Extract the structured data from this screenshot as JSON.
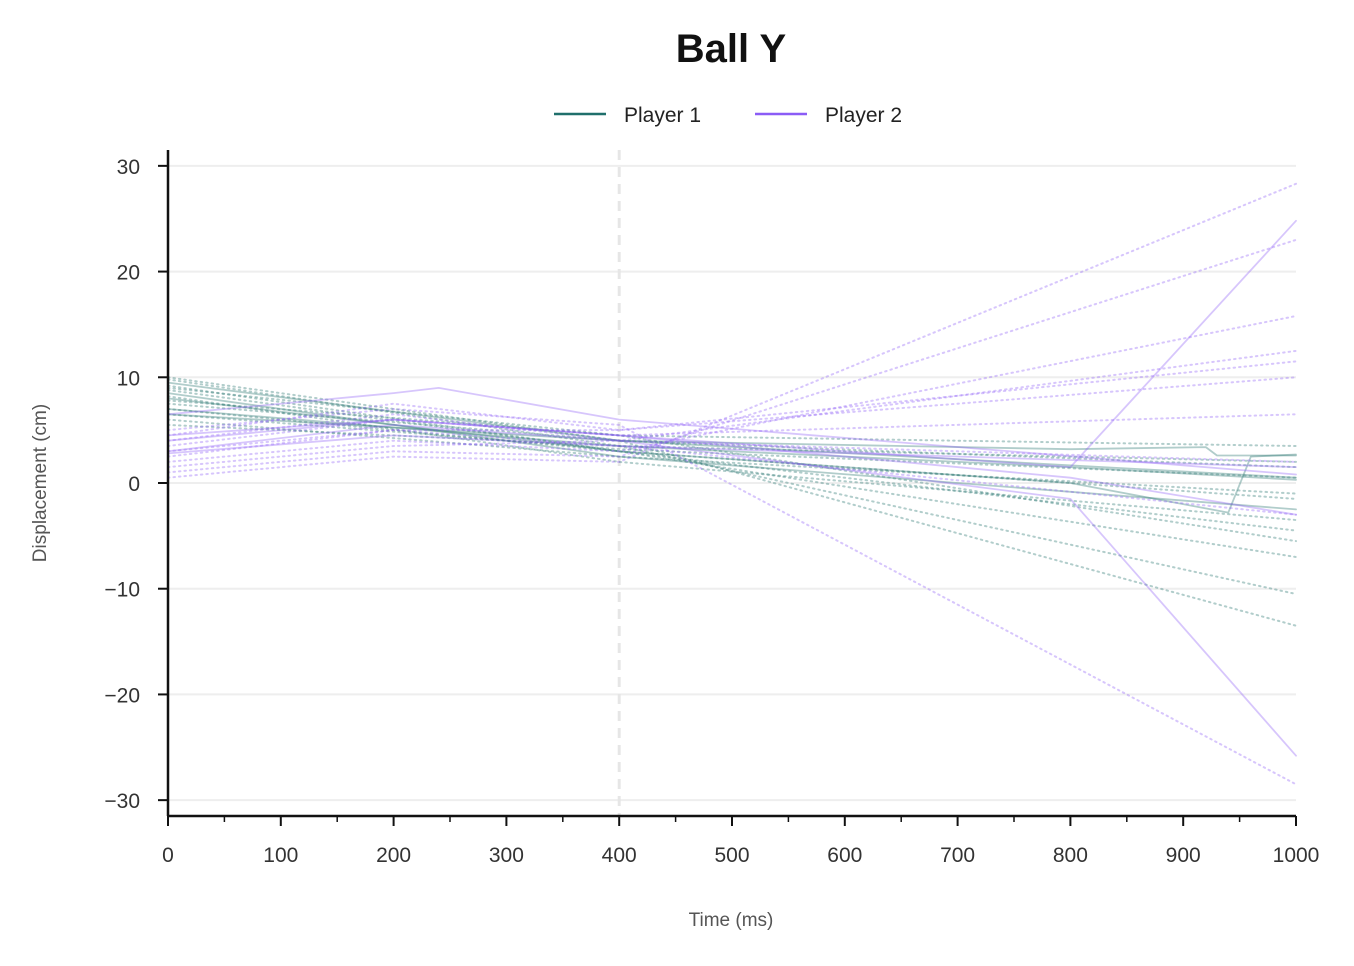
{
  "chart_data": {
    "type": "line",
    "title": "Ball Y",
    "xlabel": "Time (ms)",
    "ylabel": "Displacement (cm)",
    "xlim": [
      0,
      1000
    ],
    "ylim": [
      -31.5,
      31.5
    ],
    "x_ticks": [
      0,
      100,
      200,
      300,
      400,
      500,
      600,
      700,
      800,
      900,
      1000
    ],
    "y_ticks": [
      -30,
      -20,
      -10,
      0,
      10,
      20,
      30
    ],
    "x_tick_labels": [
      "0",
      "100",
      "200",
      "300",
      "400",
      "500",
      "600",
      "700",
      "800",
      "900",
      "1000"
    ],
    "y_tick_labels": [
      "−30",
      "−20",
      "−10",
      "0",
      "10",
      "20",
      "30"
    ],
    "grid": "horizontal",
    "reference_line_x": 400,
    "legend_position": "top-center",
    "legend": [
      {
        "label": "Player 1",
        "color": "#1f6f6b"
      },
      {
        "label": "Player 2",
        "color": "#8b5cf6"
      }
    ],
    "series": [
      {
        "player": 1,
        "style": "solid",
        "x": [
          0,
          400,
          800,
          920,
          930,
          1000
        ],
        "y": [
          9.5,
          4.0,
          3.2,
          3.4,
          2.6,
          2.6
        ]
      },
      {
        "player": 1,
        "style": "solid",
        "x": [
          0,
          400,
          800,
          940,
          960,
          1000
        ],
        "y": [
          8.0,
          3.0,
          0.0,
          -2.8,
          2.5,
          2.7
        ]
      },
      {
        "player": 1,
        "style": "solid",
        "x": [
          0,
          400,
          800,
          1000
        ],
        "y": [
          7.0,
          3.5,
          1.5,
          0.3
        ]
      },
      {
        "player": 1,
        "style": "solid",
        "x": [
          0,
          400,
          1000
        ],
        "y": [
          6.5,
          4.0,
          0.5
        ]
      },
      {
        "player": 1,
        "style": "solid",
        "x": [
          0,
          400,
          1000
        ],
        "y": [
          8.5,
          2.5,
          -2.5
        ]
      },
      {
        "player": 1,
        "style": "dotted",
        "x": [
          0,
          400,
          1000
        ],
        "y": [
          10.0,
          4.0,
          -13.5
        ]
      },
      {
        "player": 1,
        "style": "dotted",
        "x": [
          0,
          400,
          1000
        ],
        "y": [
          9.8,
          3.5,
          -10.5
        ]
      },
      {
        "player": 1,
        "style": "dotted",
        "x": [
          0,
          400,
          1000
        ],
        "y": [
          9.0,
          4.5,
          -5.5
        ]
      },
      {
        "player": 1,
        "style": "dotted",
        "x": [
          0,
          400,
          1000
        ],
        "y": [
          8.8,
          3.0,
          -7.0
        ]
      },
      {
        "player": 1,
        "style": "dotted",
        "x": [
          0,
          400,
          1000
        ],
        "y": [
          8.2,
          2.0,
          -3.5
        ]
      },
      {
        "player": 1,
        "style": "dotted",
        "x": [
          0,
          400,
          1000
        ],
        "y": [
          7.8,
          4.5,
          3.5
        ]
      },
      {
        "player": 1,
        "style": "dotted",
        "x": [
          0,
          400,
          1000
        ],
        "y": [
          7.5,
          4.0,
          1.5
        ]
      },
      {
        "player": 1,
        "style": "dotted",
        "x": [
          0,
          400,
          1000
        ],
        "y": [
          7.0,
          3.0,
          -1.5
        ]
      },
      {
        "player": 1,
        "style": "dotted",
        "x": [
          0,
          400,
          1000
        ],
        "y": [
          6.5,
          3.2,
          0.5
        ]
      },
      {
        "player": 1,
        "style": "dotted",
        "x": [
          0,
          400,
          1000
        ],
        "y": [
          6.0,
          2.5,
          -1.0
        ]
      },
      {
        "player": 1,
        "style": "dotted",
        "x": [
          0,
          400,
          1000
        ],
        "y": [
          5.5,
          3.5,
          2.0
        ]
      },
      {
        "player": 1,
        "style": "dotted",
        "x": [
          0,
          400,
          1000
        ],
        "y": [
          9.2,
          3.0,
          -4.5
        ]
      },
      {
        "player": 2,
        "style": "solid",
        "x": [
          0,
          200,
          400,
          800,
          1000
        ],
        "y": [
          4.0,
          6.0,
          4.5,
          1.5,
          24.8
        ]
      },
      {
        "player": 2,
        "style": "solid",
        "x": [
          0,
          200,
          400,
          800,
          1000
        ],
        "y": [
          3.0,
          5.5,
          4.0,
          -1.5,
          -25.8
        ]
      },
      {
        "player": 2,
        "style": "solid",
        "x": [
          0,
          200,
          240,
          400,
          1000
        ],
        "y": [
          6.5,
          8.5,
          9.0,
          6.0,
          0.8
        ]
      },
      {
        "player": 2,
        "style": "solid",
        "x": [
          0,
          200,
          400,
          800,
          1000
        ],
        "y": [
          4.5,
          6.0,
          4.5,
          0.5,
          -3.0
        ]
      },
      {
        "player": 2,
        "style": "solid",
        "x": [
          0,
          200,
          400,
          1000
        ],
        "y": [
          2.8,
          4.5,
          3.5,
          1.5
        ]
      },
      {
        "player": 2,
        "style": "dotted",
        "x": [
          0,
          200,
          400,
          1000
        ],
        "y": [
          0.5,
          2.5,
          2.0,
          28.3
        ]
      },
      {
        "player": 2,
        "style": "dotted",
        "x": [
          0,
          200,
          400,
          1000
        ],
        "y": [
          1.0,
          3.0,
          2.5,
          23.0
        ]
      },
      {
        "player": 2,
        "style": "dotted",
        "x": [
          0,
          200,
          400,
          1000
        ],
        "y": [
          2.0,
          4.0,
          3.0,
          15.8
        ]
      },
      {
        "player": 2,
        "style": "dotted",
        "x": [
          0,
          200,
          400,
          1000
        ],
        "y": [
          1.5,
          3.5,
          4.0,
          12.5
        ]
      },
      {
        "player": 2,
        "style": "dotted",
        "x": [
          0,
          200,
          400,
          1000
        ],
        "y": [
          2.5,
          5.0,
          5.0,
          10.0
        ]
      },
      {
        "player": 2,
        "style": "dotted",
        "x": [
          0,
          200,
          400,
          1000
        ],
        "y": [
          3.5,
          6.0,
          4.5,
          6.5
        ]
      },
      {
        "player": 2,
        "style": "dotted",
        "x": [
          0,
          200,
          400,
          1000
        ],
        "y": [
          4.0,
          6.5,
          4.0,
          2.0
        ]
      },
      {
        "player": 2,
        "style": "dotted",
        "x": [
          0,
          200,
          400,
          1000
        ],
        "y": [
          5.0,
          7.0,
          5.5,
          -28.5
        ]
      },
      {
        "player": 2,
        "style": "dotted",
        "x": [
          0,
          200,
          400,
          1000
        ],
        "y": [
          3.0,
          5.0,
          3.5,
          -3.0
        ]
      },
      {
        "player": 2,
        "style": "dotted",
        "x": [
          0,
          200,
          400,
          1000
        ],
        "y": [
          4.5,
          7.5,
          5.0,
          11.5
        ]
      }
    ]
  }
}
